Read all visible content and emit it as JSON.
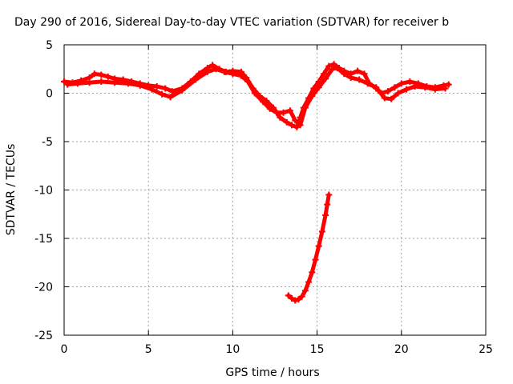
{
  "chart_data": {
    "type": "scatter",
    "title": "Day 290 of 2016, Sidereal Day-to-day VTEC variation (SDTVAR) for receiver b",
    "xlabel": "GPS time / hours",
    "ylabel": "SDTVAR / TECUs",
    "xlim": [
      0,
      25
    ],
    "ylim": [
      -25,
      5
    ],
    "xticks": [
      0,
      5,
      10,
      15,
      20,
      25
    ],
    "yticks": [
      -25,
      -20,
      -15,
      -10,
      -5,
      0,
      5
    ],
    "grid": true,
    "marker": "plus",
    "series": [
      {
        "color": "#ff0000",
        "x": [
          0.0,
          0.5,
          1.0,
          1.5,
          1.8,
          2.2,
          2.6,
          3.0,
          3.5,
          4.0,
          4.5,
          5.0,
          5.5,
          6.0,
          6.4,
          7.0,
          7.5,
          8.0,
          8.5,
          8.8,
          9.2,
          9.6,
          10.0,
          10.5,
          10.8,
          11.2,
          11.6,
          12.0,
          12.4,
          12.8,
          13.2,
          13.5,
          13.8,
          14.0,
          14.2,
          14.5,
          14.8,
          15.1,
          15.4,
          15.7,
          16.0,
          16.3,
          16.6,
          17.0,
          17.4,
          17.8,
          18.1,
          18.5,
          18.8,
          19.2,
          19.6,
          20.0,
          20.5,
          21.0,
          21.5,
          22.0,
          22.5,
          22.8
        ],
        "y": [
          1.2,
          1.1,
          1.3,
          1.6,
          2.0,
          1.9,
          1.7,
          1.5,
          1.4,
          1.2,
          1.0,
          0.8,
          0.7,
          0.5,
          0.2,
          0.5,
          1.2,
          2.0,
          2.6,
          2.9,
          2.5,
          2.2,
          2.3,
          2.2,
          1.6,
          0.5,
          -0.3,
          -0.8,
          -1.5,
          -2.5,
          -3.0,
          -3.3,
          -3.5,
          -2.5,
          -1.5,
          -0.5,
          0.5,
          1.2,
          2.0,
          2.8,
          3.0,
          2.6,
          2.3,
          2.0,
          2.3,
          2.0,
          1.0,
          0.5,
          0.0,
          0.2,
          0.6,
          1.0,
          1.2,
          1.0,
          0.7,
          0.6,
          0.8,
          0.9
        ]
      },
      {
        "color": "#ff0000",
        "x": [
          0.2,
          0.8,
          1.5,
          2.2,
          3.0,
          3.8,
          4.5,
          5.2,
          5.8,
          6.3,
          7.0,
          7.8,
          8.5,
          9.0,
          9.5,
          10.0,
          10.5,
          10.9,
          11.3,
          11.8,
          12.2,
          12.6,
          13.0,
          13.4,
          13.7,
          14.0,
          14.3,
          14.7,
          15.1,
          15.5,
          15.9,
          16.2,
          16.6,
          17.0,
          17.5,
          18.0,
          18.5,
          19.0,
          19.4,
          19.8,
          20.3,
          20.8,
          21.4,
          22.0,
          22.6
        ],
        "y": [
          0.9,
          1.0,
          1.1,
          1.2,
          1.1,
          1.0,
          0.8,
          0.4,
          -0.1,
          -0.4,
          0.3,
          1.4,
          2.2,
          2.5,
          2.2,
          2.0,
          1.8,
          1.2,
          0.0,
          -0.9,
          -1.6,
          -2.0,
          -2.0,
          -1.8,
          -2.8,
          -3.3,
          -1.5,
          -0.3,
          0.6,
          1.5,
          2.5,
          2.6,
          2.0,
          1.6,
          1.4,
          1.0,
          0.6,
          -0.5,
          -0.6,
          0.0,
          0.4,
          0.7,
          0.6,
          0.4,
          0.5
        ]
      },
      {
        "color": "#ff0000",
        "x": [
          13.3,
          13.5,
          13.7,
          13.9,
          14.1,
          14.3,
          14.5,
          14.7,
          14.9,
          15.1,
          15.3,
          15.5,
          15.6,
          15.7
        ],
        "y": [
          -20.9,
          -21.2,
          -21.4,
          -21.3,
          -21.0,
          -20.4,
          -19.5,
          -18.5,
          -17.2,
          -15.8,
          -14.3,
          -12.6,
          -11.5,
          -10.5
        ]
      }
    ]
  }
}
